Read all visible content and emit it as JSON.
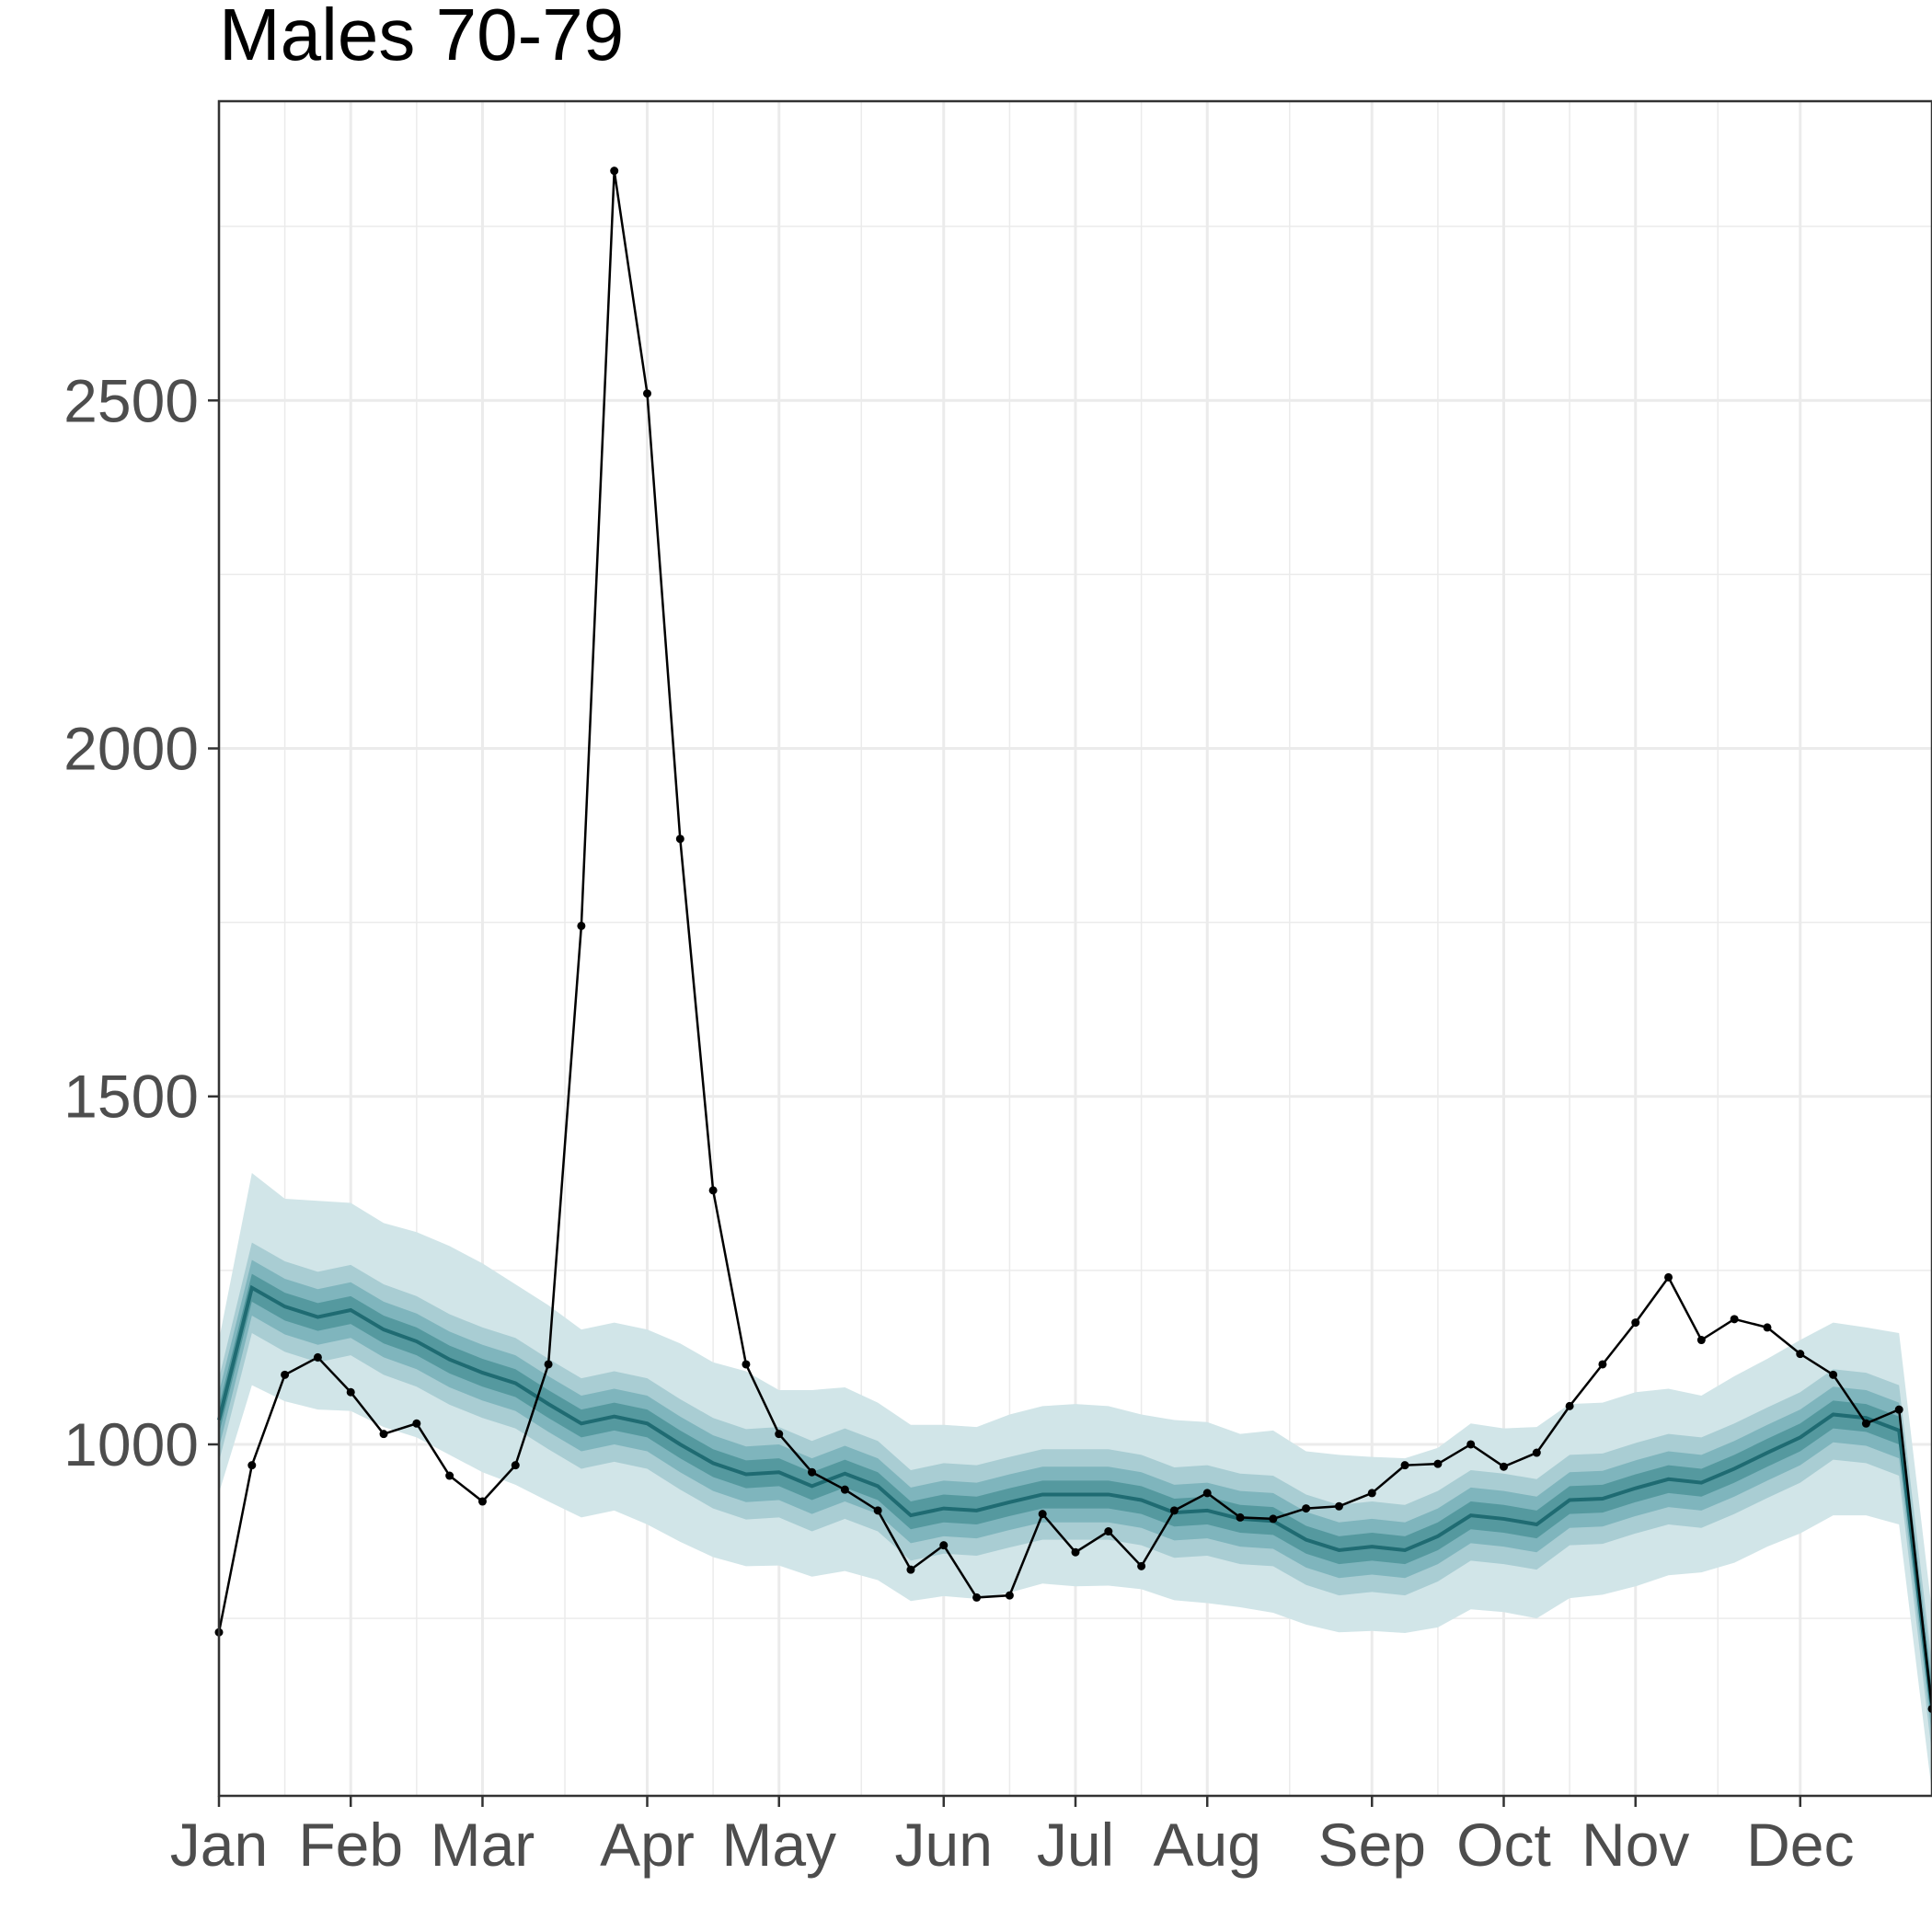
{
  "chart_data": {
    "type": "line",
    "title": "Males 70-79",
    "xlabel": "",
    "ylabel": "",
    "x_ticks": [
      {
        "label": "Jan",
        "week": 0
      },
      {
        "label": "Feb",
        "week": 4
      },
      {
        "label": "Mar",
        "week": 8
      },
      {
        "label": "Apr",
        "week": 13
      },
      {
        "label": "May",
        "week": 17
      },
      {
        "label": "Jun",
        "week": 22
      },
      {
        "label": "Jul",
        "week": 26
      },
      {
        "label": "Aug",
        "week": 30
      },
      {
        "label": "Sep",
        "week": 35
      },
      {
        "label": "Oct",
        "week": 39
      },
      {
        "label": "Nov",
        "week": 43
      },
      {
        "label": "Dec",
        "week": 48
      }
    ],
    "y_ticks": [
      1000,
      1500,
      2000,
      2500
    ],
    "xlim": [
      0,
      52
    ],
    "ylim": [
      495,
      2930
    ],
    "grid": true,
    "legend": "none",
    "colors": {
      "band_outer": "#d1e5e8",
      "band_mid": "#a9cdd3",
      "band_inner": "#7fb5bd",
      "band_core": "#55999f",
      "median_line": "#1f6b72",
      "observed": "#000000"
    },
    "series": [
      {
        "type": "fan",
        "x": [
          0,
          1,
          2,
          3,
          4,
          5,
          6,
          7,
          8,
          9,
          10,
          11,
          12,
          13,
          14,
          15,
          16,
          17,
          18,
          19,
          20,
          21,
          22,
          23,
          24,
          25,
          26,
          27,
          28,
          29,
          30,
          31,
          32,
          33,
          34,
          35,
          36,
          37,
          38,
          39,
          40,
          41,
          42,
          43,
          44,
          45,
          46,
          47,
          48,
          49,
          50,
          51,
          52
        ],
        "median": [
          1035,
          1225,
          1198,
          1183,
          1193,
          1165,
          1148,
          1122,
          1103,
          1088,
          1058,
          1030,
          1040,
          1030,
          1000,
          973,
          957,
          960,
          940,
          958,
          940,
          898,
          908,
          905,
          917,
          928,
          928,
          928,
          920,
          902,
          905,
          893,
          890,
          863,
          848,
          853,
          848,
          868,
          898,
          893,
          885,
          920,
          922,
          937,
          950,
          945,
          965,
          988,
          1010,
          1043,
          1038,
          1020,
          620
        ],
        "lower_50": [
          1015,
          1205,
          1178,
          1163,
          1173,
          1145,
          1128,
          1102,
          1083,
          1068,
          1038,
          1010,
          1020,
          1010,
          980,
          953,
          937,
          940,
          920,
          938,
          920,
          878,
          888,
          885,
          897,
          908,
          908,
          908,
          900,
          882,
          885,
          873,
          870,
          843,
          828,
          833,
          828,
          848,
          878,
          873,
          865,
          900,
          902,
          917,
          930,
          925,
          945,
          968,
          990,
          1023,
          1018,
          1000,
          600
        ],
        "upper_50": [
          1055,
          1245,
          1218,
          1203,
          1213,
          1185,
          1168,
          1142,
          1123,
          1108,
          1078,
          1050,
          1060,
          1050,
          1020,
          993,
          977,
          980,
          960,
          978,
          960,
          918,
          928,
          925,
          937,
          948,
          948,
          948,
          940,
          922,
          925,
          913,
          910,
          883,
          868,
          873,
          868,
          888,
          918,
          913,
          905,
          940,
          942,
          957,
          970,
          965,
          985,
          1008,
          1030,
          1063,
          1058,
          1040,
          640
        ],
        "lower_80": [
          995,
          1185,
          1158,
          1143,
          1153,
          1125,
          1108,
          1082,
          1063,
          1048,
          1018,
          990,
          1000,
          990,
          960,
          933,
          917,
          920,
          900,
          918,
          900,
          858,
          868,
          865,
          877,
          888,
          888,
          888,
          880,
          862,
          865,
          853,
          850,
          823,
          808,
          813,
          808,
          828,
          858,
          853,
          845,
          880,
          882,
          897,
          910,
          905,
          925,
          948,
          970,
          1003,
          998,
          980,
          580
        ],
        "upper_80": [
          1075,
          1265,
          1238,
          1223,
          1233,
          1205,
          1188,
          1162,
          1143,
          1128,
          1098,
          1070,
          1080,
          1070,
          1040,
          1013,
          997,
          1000,
          980,
          998,
          980,
          938,
          948,
          945,
          957,
          968,
          968,
          968,
          960,
          942,
          945,
          933,
          930,
          903,
          888,
          893,
          888,
          908,
          938,
          933,
          925,
          960,
          962,
          977,
          990,
          985,
          1005,
          1028,
          1050,
          1083,
          1078,
          1060,
          660
        ],
        "lower_95": [
          975,
          1160,
          1133,
          1118,
          1128,
          1100,
          1083,
          1057,
          1038,
          1023,
          993,
          965,
          975,
          965,
          935,
          908,
          892,
          895,
          875,
          893,
          875,
          833,
          843,
          840,
          852,
          863,
          863,
          863,
          855,
          837,
          840,
          828,
          825,
          798,
          783,
          788,
          783,
          803,
          833,
          828,
          820,
          855,
          857,
          872,
          885,
          880,
          900,
          923,
          945,
          978,
          973,
          955,
          555
        ],
        "upper_95": [
          1095,
          1290,
          1263,
          1248,
          1258,
          1230,
          1213,
          1187,
          1168,
          1153,
          1123,
          1095,
          1105,
          1095,
          1065,
          1038,
          1022,
          1025,
          1005,
          1023,
          1005,
          963,
          973,
          970,
          982,
          993,
          993,
          993,
          985,
          967,
          970,
          958,
          955,
          928,
          913,
          918,
          913,
          933,
          963,
          958,
          950,
          985,
          987,
          1002,
          1015,
          1010,
          1030,
          1053,
          1075,
          1108,
          1103,
          1085,
          685
        ],
        "lower_99": [
          930,
          1085,
          1062,
          1050,
          1048,
          1025,
          1010,
          985,
          960,
          942,
          918,
          895,
          905,
          885,
          860,
          838,
          825,
          826,
          810,
          818,
          805,
          775,
          782,
          778,
          787,
          800,
          796,
          797,
          792,
          776,
          772,
          766,
          758,
          741,
          730,
          732,
          729,
          737,
          763,
          759,
          750,
          779,
          784,
          796,
          812,
          816,
          830,
          853,
          872,
          898,
          898,
          885,
          500
        ],
        "upper_99": [
          1150,
          1390,
          1353,
          1350,
          1347,
          1318,
          1305,
          1285,
          1260,
          1230,
          1200,
          1165,
          1175,
          1165,
          1145,
          1118,
          1105,
          1078,
          1078,
          1082,
          1060,
          1028,
          1028,
          1025,
          1043,
          1055,
          1058,
          1055,
          1043,
          1035,
          1032,
          1015,
          1020,
          990,
          985,
          982,
          980,
          995,
          1030,
          1023,
          1025,
          1058,
          1060,
          1075,
          1080,
          1070,
          1098,
          1123,
          1150,
          1175,
          1168,
          1160,
          760
        ]
      },
      {
        "type": "observed",
        "x": [
          0,
          1,
          2,
          3,
          4,
          5,
          6,
          7,
          8,
          9,
          10,
          11,
          12,
          13,
          14,
          15,
          16,
          17,
          18,
          19,
          20,
          21,
          22,
          23,
          24,
          25,
          26,
          27,
          28,
          29,
          30,
          31,
          32,
          33,
          34,
          35,
          36,
          37,
          38,
          39,
          40,
          41,
          42,
          43,
          44,
          45,
          46,
          47,
          48,
          49,
          50,
          51,
          52
        ],
        "values": [
          730,
          970,
          1100,
          1125,
          1075,
          1015,
          1030,
          955,
          918,
          970,
          1115,
          1745,
          2830,
          2510,
          1870,
          1365,
          1115,
          1015,
          960,
          935,
          905,
          820,
          855,
          780,
          783,
          900,
          845,
          875,
          825,
          905,
          930,
          895,
          893,
          908,
          911,
          930,
          970,
          972,
          1000,
          968,
          988,
          1055,
          1115,
          1175,
          1240,
          1150,
          1180,
          1168,
          1130,
          1100,
          1030,
          1050,
          620
        ]
      }
    ]
  }
}
